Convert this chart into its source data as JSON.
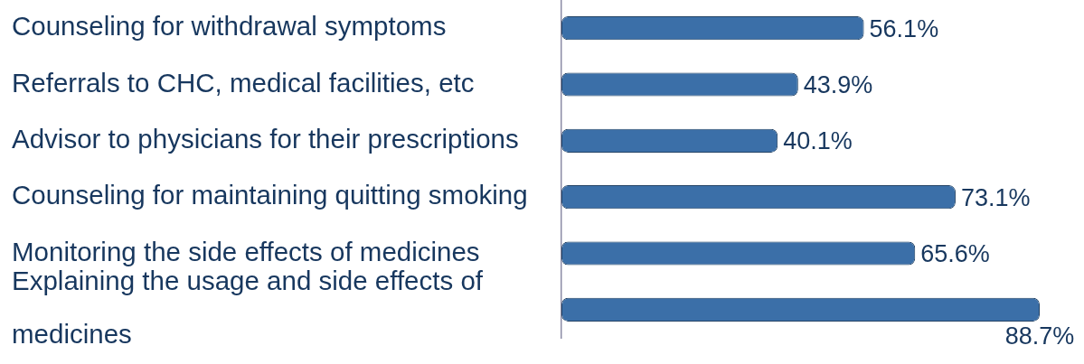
{
  "chart_data": {
    "type": "bar",
    "orientation": "horizontal",
    "categories": [
      "Counseling for withdrawal symptoms",
      "Referrals to CHC, medical facilities, etc",
      "Advisor to physicians for their prescriptions",
      "Counseling for maintaining quitting smoking",
      "Monitoring the side effects of medicines",
      "Explaining the usage and side effects of medicines"
    ],
    "values": [
      56.1,
      43.9,
      40.1,
      73.1,
      65.6,
      88.7
    ],
    "value_labels": [
      "56.1%",
      "43.9%",
      "40.1%",
      "73.1%",
      "65.6%",
      "88.7%"
    ],
    "color": "#3b6fa8",
    "tick_labels": "y"
  }
}
